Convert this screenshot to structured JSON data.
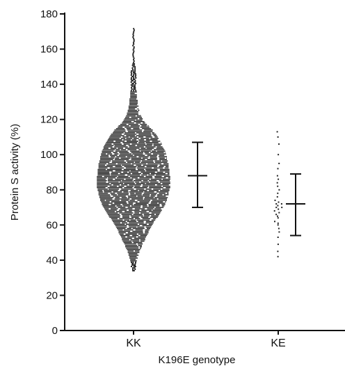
{
  "chart_data": {
    "type": "scatter",
    "subtype": "beeswarm-dot-plot-with-mean-sd",
    "title": "",
    "xlabel": "K196E genotype",
    "ylabel": "Protein S activity (%)",
    "ylim": [
      0,
      180
    ],
    "yticks": [
      0,
      20,
      40,
      60,
      80,
      100,
      120,
      140,
      160,
      180
    ],
    "categories": [
      "KK",
      "KE"
    ],
    "series": [
      {
        "category": "KK",
        "mean": 88,
        "sd_low": 70,
        "sd_high": 107,
        "density_profile": [
          [
            34,
            2
          ],
          [
            38,
            3
          ],
          [
            42,
            5
          ],
          [
            46,
            8
          ],
          [
            50,
            12
          ],
          [
            54,
            16
          ],
          [
            58,
            20
          ],
          [
            62,
            25
          ],
          [
            66,
            31
          ],
          [
            70,
            36
          ],
          [
            74,
            40
          ],
          [
            78,
            42
          ],
          [
            82,
            44
          ],
          [
            86,
            44
          ],
          [
            90,
            43
          ],
          [
            94,
            42
          ],
          [
            98,
            40
          ],
          [
            102,
            38
          ],
          [
            106,
            34
          ],
          [
            110,
            29
          ],
          [
            114,
            23
          ],
          [
            118,
            14
          ],
          [
            122,
            9
          ],
          [
            126,
            6
          ],
          [
            130,
            5
          ],
          [
            134,
            4
          ],
          [
            138,
            3
          ],
          [
            142,
            3
          ],
          [
            146,
            3
          ],
          [
            150,
            2
          ],
          [
            154,
            1
          ],
          [
            158,
            1
          ],
          [
            162,
            1
          ],
          [
            166,
            1
          ],
          [
            170,
            1
          ],
          [
            172,
            1
          ]
        ]
      },
      {
        "category": "KE",
        "mean": 72,
        "sd_low": 54,
        "sd_high": 89,
        "values": [
          42,
          45,
          49,
          53,
          56,
          58,
          60,
          61,
          62,
          64,
          65,
          66,
          67,
          68,
          69,
          70,
          70,
          71,
          72,
          72,
          73,
          74,
          76,
          78,
          80,
          82,
          84,
          86,
          88,
          92,
          95,
          100,
          106,
          110,
          113
        ]
      }
    ]
  }
}
